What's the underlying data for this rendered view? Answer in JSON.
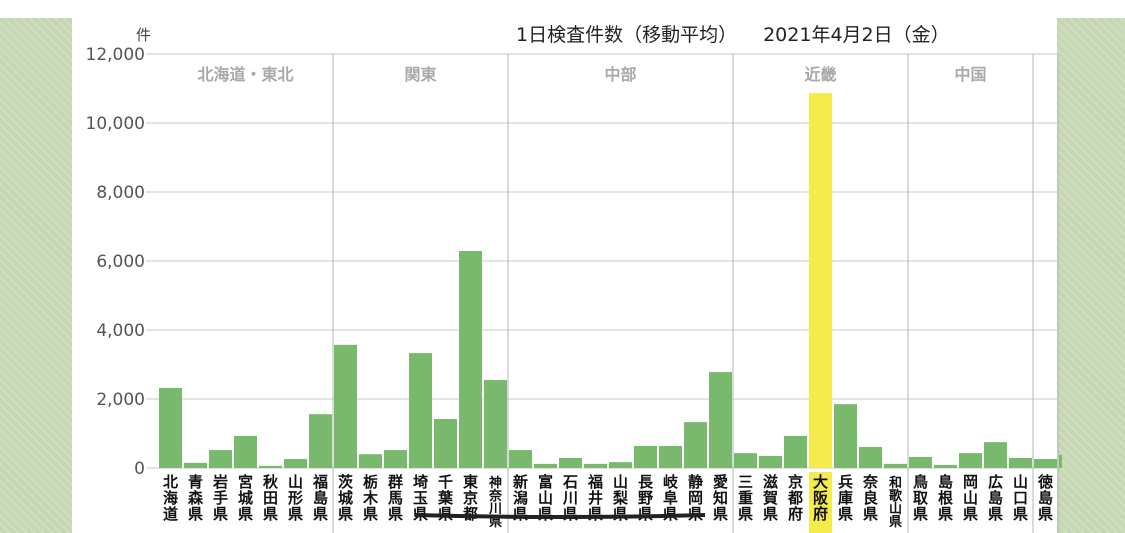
{
  "chart_data": {
    "type": "bar",
    "title": "1日検査件数（移動平均）",
    "date": "2021年4月2日（金）",
    "ylabel": "件",
    "ylim": [
      0,
      12000
    ],
    "yticks": [
      "0",
      "2,000",
      "4,000",
      "6,000",
      "8,000",
      "10,000",
      "12,000"
    ],
    "grid": true,
    "regions": [
      {
        "name": "北海道・東北",
        "count": 7
      },
      {
        "name": "関東",
        "count": 7
      },
      {
        "name": "中部",
        "count": 9
      },
      {
        "name": "近畿",
        "count": 7
      },
      {
        "name": "中国",
        "count": 5
      },
      {
        "name": "",
        "count": 1
      }
    ],
    "categories": [
      "北海道",
      "青森県",
      "岩手県",
      "宮城県",
      "秋田県",
      "山形県",
      "福島県",
      "茨城県",
      "栃木県",
      "群馬県",
      "埼玉県",
      "千葉県",
      "東京都",
      "神奈川県",
      "新潟県",
      "富山県",
      "石川県",
      "福井県",
      "山梨県",
      "長野県",
      "岐阜県",
      "静岡県",
      "愛知県",
      "三重県",
      "滋賀県",
      "京都府",
      "大阪府",
      "兵庫県",
      "奈良県",
      "和歌山県",
      "鳥取県",
      "島根県",
      "岡山県",
      "広島県",
      "山口県",
      "徳島県"
    ],
    "values": [
      2320,
      150,
      520,
      930,
      60,
      260,
      1560,
      3570,
      400,
      520,
      3330,
      1420,
      6290,
      2550,
      520,
      120,
      290,
      120,
      170,
      640,
      640,
      1330,
      2780,
      430,
      350,
      930,
      10870,
      1850,
      610,
      120,
      320,
      90,
      430,
      750,
      290,
      260
    ],
    "highlight": "大阪府",
    "colors": {
      "bar": "#78b96e",
      "highlight": "#f3ec4c",
      "grid": "#c8c8c8",
      "region_label": "#a9a9a9"
    }
  }
}
